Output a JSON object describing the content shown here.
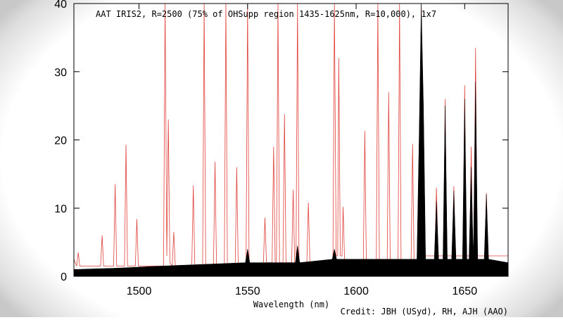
{
  "chart_data": {
    "type": "spectrum",
    "title": "AAT IRIS2, R=2500 (75% of OHSupp region 1435-1625nm, R=10,000), 1x7",
    "x_label": "Wavelength (nm)",
    "credit": "Credit: JBH (USyd), RH, AJH (AAO)",
    "xlim": [
      1470,
      1670
    ],
    "xticks": [
      1500,
      1550,
      1600,
      1650
    ],
    "ylim": [
      0,
      40
    ],
    "yticks": [
      0,
      10,
      20,
      30,
      40
    ],
    "series": [
      {
        "kind": "line",
        "color": "#e0413a",
        "x": [
          1470,
          1471.3,
          1472,
          1472.7,
          1482.3,
          1483,
          1483.7,
          1488.3,
          1489,
          1489.7,
          1493.3,
          1494,
          1494.7,
          1498.3,
          1499,
          1499.7,
          1511.3,
          1512,
          1512.8,
          1513.5,
          1514.2,
          1515.3,
          1516,
          1516.7,
          1524.3,
          1525,
          1525.7,
          1529.3,
          1530,
          1530.7,
          1534.3,
          1535,
          1535.7,
          1539.3,
          1540,
          1540.7,
          1544.3,
          1545,
          1545.7,
          1549.3,
          1550,
          1550.7,
          1557.3,
          1558,
          1558.7,
          1561.3,
          1562,
          1562.7,
          1563.3,
          1564,
          1564.7,
          1566.3,
          1567,
          1567.7,
          1570.3,
          1571,
          1571.7,
          1572.3,
          1573,
          1573.7,
          1577.3,
          1578,
          1578.7,
          1589.3,
          1590,
          1590.8,
          1591.5,
          1592,
          1592.7,
          1593.5,
          1594,
          1594.7,
          1603.3,
          1604,
          1604.7,
          1609.3,
          1610,
          1610.7,
          1614.3,
          1615,
          1615.7,
          1619.3,
          1620,
          1620.7,
          1625.3,
          1626,
          1626.7,
          1629.3,
          1630,
          1630.7,
          1636.3,
          1637,
          1637.7,
          1640.3,
          1641,
          1641.7,
          1644.3,
          1645,
          1645.7,
          1649.3,
          1650,
          1650.7,
          1652.3,
          1653,
          1653.7,
          1654.3,
          1655,
          1655.7,
          1659.3,
          1660,
          1660.7,
          1670
        ],
        "values": [
          2.5,
          1.5,
          3.5,
          1.5,
          1.5,
          6,
          1.5,
          1.5,
          13.5,
          1.5,
          1.5,
          19.3,
          1.5,
          1.5,
          8.4,
          1.5,
          1.5,
          40,
          3,
          23,
          2,
          1.5,
          6.5,
          1.5,
          1.5,
          13.3,
          1.5,
          1.5,
          40,
          1.5,
          1.5,
          16.8,
          1.5,
          1.5,
          40,
          1.5,
          1.5,
          16,
          1.5,
          1.5,
          40,
          1.5,
          2,
          8.6,
          2,
          2,
          19,
          2,
          2,
          40,
          2,
          2,
          23.8,
          2,
          2,
          12.7,
          2,
          2,
          40,
          2,
          2,
          10.8,
          2,
          2,
          40,
          3,
          3,
          32,
          3,
          3,
          10.2,
          2,
          2,
          21.3,
          2,
          2,
          40,
          2,
          2,
          27,
          2,
          2,
          40,
          2,
          2,
          19.4,
          2,
          2,
          40,
          3,
          3,
          13,
          3,
          3,
          26,
          3,
          3,
          13.2,
          3,
          3,
          28,
          3,
          3,
          19,
          3,
          3,
          33.5,
          3,
          3,
          12.2,
          3,
          3
        ]
      },
      {
        "kind": "area",
        "color": "#000000",
        "x": [
          1470,
          1490,
          1510,
          1549,
          1550,
          1551,
          1572,
          1573,
          1574,
          1589,
          1590,
          1591,
          1628,
          1629,
          1630,
          1631,
          1632,
          1636,
          1637,
          1638,
          1640,
          1641,
          1642,
          1644,
          1645,
          1646,
          1649,
          1650,
          1651,
          1652,
          1653,
          1654,
          1655,
          1656,
          1659,
          1660,
          1661,
          1670
        ],
        "values": [
          1,
          1.2,
          1.5,
          2,
          4,
          2,
          2,
          4.5,
          2,
          2.5,
          4,
          2.5,
          2.5,
          20,
          40,
          25,
          2.5,
          2.5,
          11,
          2.5,
          2.5,
          25,
          2.5,
          2.5,
          12.5,
          2.5,
          2.5,
          26,
          2.5,
          2.5,
          16,
          2.5,
          28.5,
          2.5,
          2.5,
          12,
          2.5,
          2
        ]
      }
    ]
  }
}
